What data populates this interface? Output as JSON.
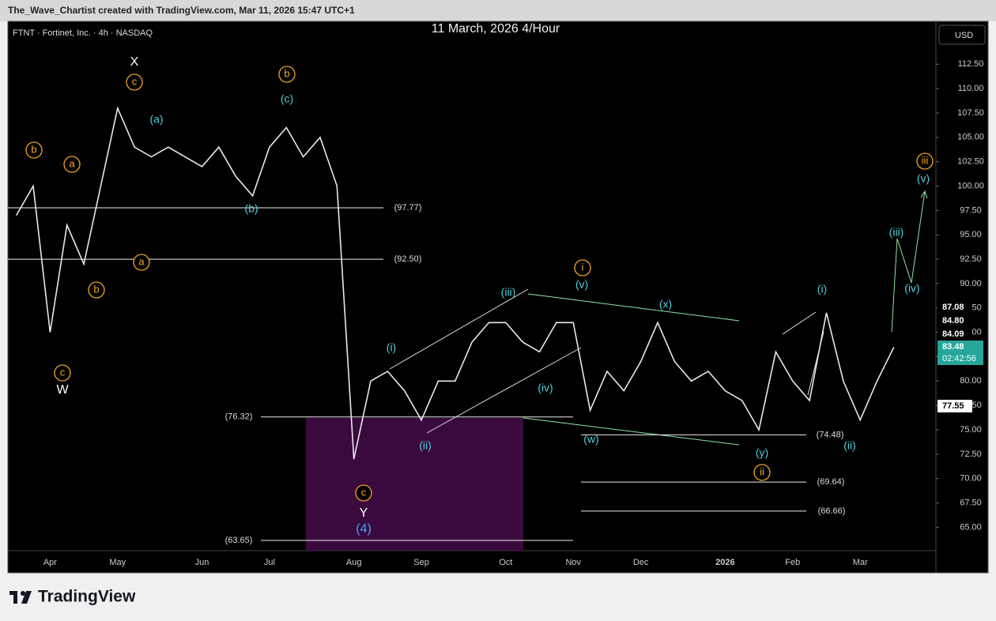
{
  "chart_data": {
    "type": "line",
    "header": "The_Wave_Chartist created with TradingView.com, Mar 11, 2026 15:47 UTC+1",
    "symbol": "FTNT · Fortinet, Inc. · 4h · NASDAQ",
    "title": "11 March, 2026 4/Hour",
    "currency": "USD",
    "brand": "TradingView",
    "color": "#e8e8e8",
    "categories": [
      null,
      null,
      "Apr",
      null,
      null,
      null,
      "May",
      null,
      null,
      null,
      null,
      "Jun",
      null,
      null,
      null,
      "Jul",
      null,
      null,
      null,
      null,
      "Aug",
      null,
      null,
      null,
      "Sep",
      null,
      null,
      null,
      null,
      "Oct",
      null,
      null,
      null,
      "Nov",
      null,
      null,
      null,
      "Dec",
      null,
      null,
      null,
      null,
      "2026",
      null,
      null,
      null,
      "Feb",
      null,
      null,
      null,
      "Mar",
      null,
      null,
      null,
      null
    ],
    "values": [
      97,
      100,
      85,
      96,
      92,
      100,
      108,
      104,
      103,
      104,
      103,
      102,
      104,
      101,
      99,
      104,
      106,
      103,
      105,
      100,
      72,
      80,
      81,
      79,
      76,
      80,
      80,
      84,
      86,
      86,
      84,
      83,
      86,
      86,
      77,
      81,
      79,
      82,
      86,
      82,
      80,
      81,
      79,
      78,
      75,
      83,
      80,
      78,
      87,
      80,
      76,
      80,
      83.48,
      null,
      null
    ],
    "ylim": [
      62.6,
      116.9
    ],
    "yticks": [
      {
        "value": 65,
        "label": "65.00"
      },
      {
        "value": 67.5,
        "label": "67.50"
      },
      {
        "value": 70,
        "label": "70.00"
      },
      {
        "value": 72.5,
        "label": "72.50"
      },
      {
        "value": 75,
        "label": "75.00"
      },
      {
        "value": 77.5,
        "label": "77.50"
      },
      {
        "value": 80,
        "label": "80.00"
      },
      {
        "value": 82.5,
        "label": "82.50"
      },
      {
        "value": 85,
        "label": "85.00"
      },
      {
        "value": 87.5,
        "label": "87.50"
      },
      {
        "value": 90,
        "label": "90.00"
      },
      {
        "value": 92.5,
        "label": "92.50"
      },
      {
        "value": 95,
        "label": "95.00"
      },
      {
        "value": 97.5,
        "label": "97.50"
      },
      {
        "value": 100,
        "label": "100.00"
      },
      {
        "value": 102.5,
        "label": "102.50"
      },
      {
        "value": 105,
        "label": "105.00"
      },
      {
        "value": 107.5,
        "label": "107.50"
      },
      {
        "value": 110,
        "label": "110.00"
      },
      {
        "value": 112.5,
        "label": "112.50"
      }
    ],
    "levels": [
      {
        "value": 97.77,
        "label": "(97.77)"
      },
      {
        "value": 92.5,
        "label": "(92.50)"
      },
      {
        "value": 76.32,
        "label": "(76.32)"
      },
      {
        "value": 63.65,
        "label": "(63.65)"
      },
      {
        "value": 74.48,
        "label": "(74.48)"
      },
      {
        "value": 69.64,
        "label": "(69.64)"
      },
      {
        "value": 66.66,
        "label": "(66.66)"
      }
    ],
    "price_tags": [
      {
        "value": 87.08,
        "label": "87.08"
      },
      {
        "value": 84.8,
        "label": "84.80"
      },
      {
        "value": 84.09,
        "label": "84.09"
      },
      {
        "value": 83.48,
        "label": "83.48",
        "time": "02:42:56"
      },
      {
        "value": 77.55,
        "label": "77.55"
      }
    ],
    "wave_labels": [
      "b",
      "a",
      "c",
      "b",
      "b",
      "a",
      "c",
      "c",
      "i",
      "ii",
      "iii",
      "X",
      "W",
      "Y",
      "(4)",
      "(a)",
      "(c)",
      "(b)",
      "(i)",
      "(ii)",
      "(iii)",
      "(iv)",
      "(v)",
      "(x)",
      "(w)",
      "(y)",
      "(i)",
      "(ii)",
      "(iii)",
      "(iv)",
      "(v)"
    ]
  }
}
